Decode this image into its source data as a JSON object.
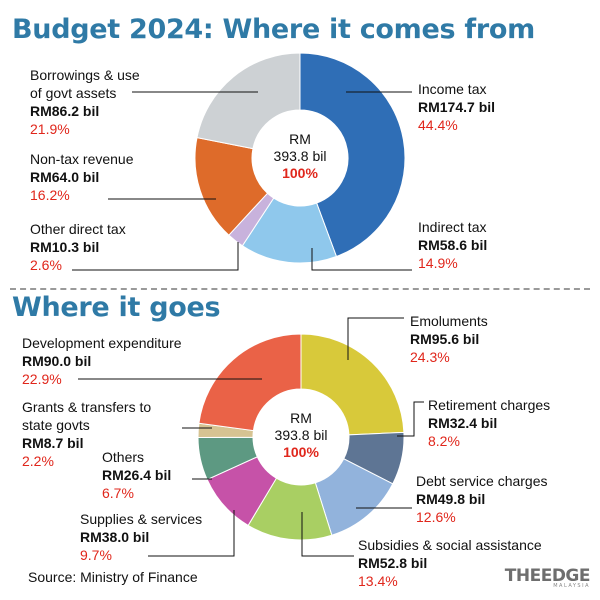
{
  "branding": {
    "logo_text": "THEEDGE",
    "logo_sub": "MALAYSIA"
  },
  "source": "Source: Ministry of Finance",
  "chart_data": [
    {
      "type": "pie",
      "title": "Budget 2024: Where it comes from",
      "center": {
        "line1": "RM",
        "line2": "393.8 bil",
        "line3": "100%"
      },
      "total_bil": 393.8,
      "slices": [
        {
          "name": "Income tax",
          "amount": "RM174.7 bil",
          "pct": "44.4%",
          "value": 174.7,
          "color": "#2f6eb6"
        },
        {
          "name": "Indirect tax",
          "amount": "RM58.6 bil",
          "pct": "14.9%",
          "value": 58.6,
          "color": "#8fc8ec"
        },
        {
          "name": "Other direct tax",
          "amount": "RM10.3 bil",
          "pct": "2.6%",
          "value": 10.3,
          "color": "#c8b2dc"
        },
        {
          "name": "Non-tax revenue",
          "amount": "RM64.0 bil",
          "pct": "16.2%",
          "value": 64.0,
          "color": "#de6b2a"
        },
        {
          "name": "Borrowings & use of govt assets",
          "name_line1": "Borrowings & use",
          "name_line2": "of govt assets",
          "amount": "RM86.2 bil",
          "pct": "21.9%",
          "value": 86.2,
          "color": "#cdd1d4"
        }
      ]
    },
    {
      "type": "pie",
      "title": "Where it goes",
      "center": {
        "line1": "RM",
        "line2": "393.8 bil",
        "line3": "100%"
      },
      "total_bil": 393.8,
      "slices": [
        {
          "name": "Emoluments",
          "amount": "RM95.6 bil",
          "pct": "24.3%",
          "value": 95.6,
          "color": "#d8c93a"
        },
        {
          "name": "Retirement charges",
          "amount": "RM32.4 bil",
          "pct": "8.2%",
          "value": 32.4,
          "color": "#5e7594"
        },
        {
          "name": "Debt service charges",
          "amount": "RM49.8 bil",
          "pct": "12.6%",
          "value": 49.8,
          "color": "#92b3dc"
        },
        {
          "name": "Subsidies & social assistance",
          "amount": "RM52.8 bil",
          "pct": "13.4%",
          "value": 52.8,
          "color": "#a9cf63"
        },
        {
          "name": "Supplies & services",
          "amount": "RM38.0 bil",
          "pct": "9.7%",
          "value": 38.0,
          "color": "#c652a8"
        },
        {
          "name": "Others",
          "amount": "RM26.4 bil",
          "pct": "6.7%",
          "value": 26.4,
          "color": "#5d9982"
        },
        {
          "name": "Grants & transfers to state govts",
          "name_line1": "Grants & transfers to",
          "name_line2": "state govts",
          "amount": "RM8.7 bil",
          "pct": "2.2%",
          "value": 8.7,
          "color": "#d6c392"
        },
        {
          "name": "Development expenditure",
          "amount": "RM90.0 bil",
          "pct": "22.9%",
          "value": 90.0,
          "color": "#ea6247"
        }
      ]
    }
  ]
}
